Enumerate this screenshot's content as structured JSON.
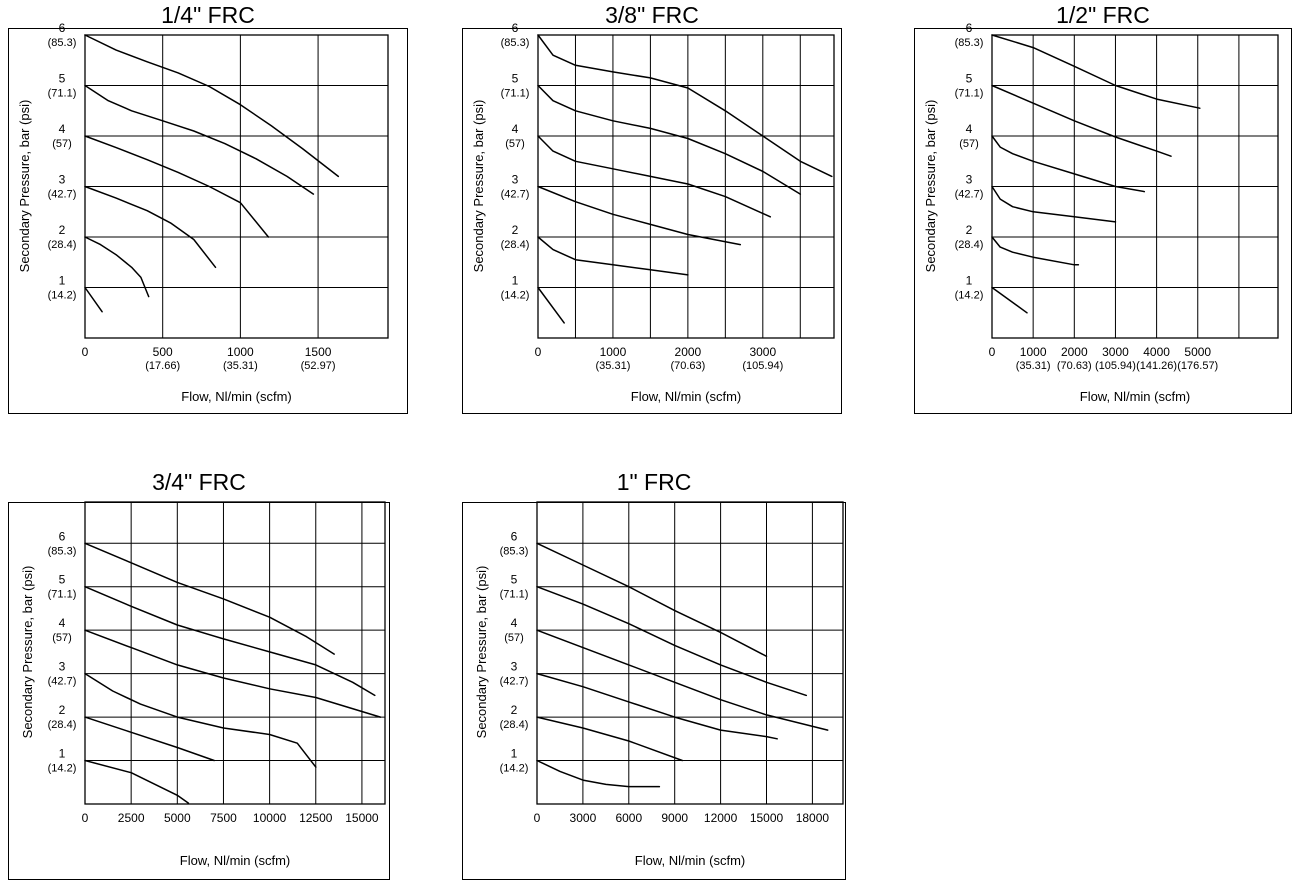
{
  "chart_data": [
    {
      "type": "line",
      "title": "1/4\" FRC",
      "xlabel": "Flow, Nl/min (scfm)",
      "ylabel": "Secondary Pressure, bar (psi)",
      "xlim": [
        0,
        1950
      ],
      "ylim": [
        0,
        6
      ],
      "grid": true,
      "x_grid_step": 500,
      "x_ticks": [
        {
          "value": 0,
          "label": "0"
        },
        {
          "value": 500,
          "label": "500",
          "sub": "(17.66)"
        },
        {
          "value": 1000,
          "label": "1000",
          "sub": "(35.31)"
        },
        {
          "value": 1500,
          "label": "1500",
          "sub": "(52.97)"
        }
      ],
      "y_ticks": [
        {
          "value": 1,
          "label": "1",
          "sub": "(14.2)"
        },
        {
          "value": 2,
          "label": "2",
          "sub": "(28.4)"
        },
        {
          "value": 3,
          "label": "3",
          "sub": "(42.7)"
        },
        {
          "value": 4,
          "label": "4",
          "sub": "(57)"
        },
        {
          "value": 5,
          "label": "5",
          "sub": "(71.1)"
        },
        {
          "value": 6,
          "label": "6",
          "sub": "(85.3)"
        }
      ],
      "series": [
        {
          "x": [
            0,
            200,
            400,
            600,
            800,
            1000,
            1200,
            1400,
            1630
          ],
          "y": [
            6,
            5.7,
            5.47,
            5.25,
            4.98,
            4.62,
            4.2,
            3.75,
            3.2
          ]
        },
        {
          "x": [
            0,
            150,
            300,
            500,
            700,
            900,
            1100,
            1300,
            1470
          ],
          "y": [
            5,
            4.7,
            4.5,
            4.3,
            4.1,
            3.85,
            3.55,
            3.2,
            2.85
          ]
        },
        {
          "x": [
            0,
            200,
            400,
            600,
            800,
            1000,
            1180
          ],
          "y": [
            4,
            3.77,
            3.53,
            3.28,
            3.0,
            2.68,
            2.0
          ]
        },
        {
          "x": [
            0,
            200,
            400,
            550,
            700,
            840
          ],
          "y": [
            3,
            2.77,
            2.52,
            2.28,
            1.95,
            1.4
          ]
        },
        {
          "x": [
            0,
            100,
            200,
            300,
            360,
            410
          ],
          "y": [
            2,
            1.85,
            1.65,
            1.4,
            1.2,
            0.82
          ]
        },
        {
          "x": [
            0,
            110
          ],
          "y": [
            1,
            0.52
          ]
        }
      ]
    },
    {
      "type": "line",
      "title": "3/8\" FRC",
      "xlabel": "Flow, Nl/min (scfm)",
      "ylabel": "Secondary Pressure, bar (psi)",
      "xlim": [
        0,
        3950
      ],
      "ylim": [
        0,
        6
      ],
      "grid": true,
      "x_grid_step": 500,
      "x_ticks": [
        {
          "value": 0,
          "label": "0"
        },
        {
          "value": 1000,
          "label": "1000",
          "sub": "(35.31)"
        },
        {
          "value": 2000,
          "label": "2000",
          "sub": "(70.63)"
        },
        {
          "value": 3000,
          "label": "3000",
          "sub": "(105.94)"
        }
      ],
      "y_ticks": [
        {
          "value": 1,
          "label": "1",
          "sub": "(14.2)"
        },
        {
          "value": 2,
          "label": "2",
          "sub": "(28.4)"
        },
        {
          "value": 3,
          "label": "3",
          "sub": "(42.7)"
        },
        {
          "value": 4,
          "label": "4",
          "sub": "(57)"
        },
        {
          "value": 5,
          "label": "5",
          "sub": "(71.1)"
        },
        {
          "value": 6,
          "label": "6",
          "sub": "(85.3)"
        }
      ],
      "series": [
        {
          "x": [
            0,
            200,
            500,
            1000,
            1500,
            2000,
            2500,
            3000,
            3500,
            3920
          ],
          "y": [
            6,
            5.6,
            5.4,
            5.27,
            5.15,
            4.95,
            4.5,
            4.0,
            3.5,
            3.2
          ]
        },
        {
          "x": [
            0,
            200,
            500,
            1000,
            1500,
            2000,
            2500,
            3000,
            3500
          ],
          "y": [
            5,
            4.7,
            4.5,
            4.3,
            4.15,
            3.95,
            3.65,
            3.3,
            2.85
          ]
        },
        {
          "x": [
            0,
            200,
            500,
            1000,
            1500,
            2000,
            2500,
            3100
          ],
          "y": [
            4,
            3.7,
            3.5,
            3.35,
            3.2,
            3.05,
            2.8,
            2.4
          ]
        },
        {
          "x": [
            0,
            500,
            1000,
            1500,
            2000,
            2700
          ],
          "y": [
            3,
            2.7,
            2.45,
            2.25,
            2.05,
            1.85
          ]
        },
        {
          "x": [
            0,
            200,
            500,
            1000,
            1500,
            2000
          ],
          "y": [
            2,
            1.75,
            1.55,
            1.45,
            1.35,
            1.25
          ]
        },
        {
          "x": [
            0,
            350
          ],
          "y": [
            1,
            0.3
          ]
        }
      ]
    },
    {
      "type": "line",
      "title": "1/2\" FRC",
      "xlabel": "Flow, Nl/min (scfm)",
      "ylabel": "Secondary Pressure, bar (psi)",
      "xlim": [
        0,
        6950
      ],
      "ylim": [
        0,
        6
      ],
      "grid": true,
      "x_grid_step": 1000,
      "x_ticks": [
        {
          "value": 0,
          "label": "0"
        },
        {
          "value": 1000,
          "label": "1000",
          "sub": "(35.31)"
        },
        {
          "value": 2000,
          "label": "2000",
          "sub": "(70.63)"
        },
        {
          "value": 3000,
          "label": "3000",
          "sub": "(105.94)"
        },
        {
          "value": 4000,
          "label": "4000",
          "sub": "(141.26)"
        },
        {
          "value": 5000,
          "label": "5000",
          "sub": "(176.57)"
        }
      ],
      "y_ticks": [
        {
          "value": 1,
          "label": "1",
          "sub": "(14.2)"
        },
        {
          "value": 2,
          "label": "2",
          "sub": "(28.4)"
        },
        {
          "value": 3,
          "label": "3",
          "sub": "(42.7)"
        },
        {
          "value": 4,
          "label": "4",
          "sub": "(57)"
        },
        {
          "value": 5,
          "label": "5",
          "sub": "(71.1)"
        },
        {
          "value": 6,
          "label": "6",
          "sub": "(85.3)"
        }
      ],
      "series": [
        {
          "x": [
            0,
            1000,
            2000,
            3000,
            4000,
            5050
          ],
          "y": [
            6,
            5.75,
            5.38,
            5.0,
            4.73,
            4.55
          ]
        },
        {
          "x": [
            0,
            1000,
            2000,
            3000,
            4000,
            4350
          ],
          "y": [
            5,
            4.65,
            4.3,
            3.98,
            3.7,
            3.6
          ]
        },
        {
          "x": [
            0,
            200,
            500,
            1000,
            2000,
            3000,
            3700
          ],
          "y": [
            4,
            3.78,
            3.65,
            3.5,
            3.25,
            3.0,
            2.9
          ]
        },
        {
          "x": [
            0,
            200,
            500,
            1000,
            2000,
            3000
          ],
          "y": [
            3,
            2.75,
            2.6,
            2.5,
            2.4,
            2.3
          ]
        },
        {
          "x": [
            0,
            200,
            500,
            1000,
            2000,
            2100
          ],
          "y": [
            2,
            1.8,
            1.7,
            1.6,
            1.45,
            1.45
          ]
        },
        {
          "x": [
            0,
            850
          ],
          "y": [
            1,
            0.5
          ]
        }
      ]
    },
    {
      "type": "line",
      "title": "3/4\" FRC",
      "xlabel": "Flow, Nl/min (scfm)",
      "ylabel": "Secondary Pressure, bar (psi)",
      "xlim": [
        0,
        16250
      ],
      "ylim": [
        0,
        6.95
      ],
      "grid": true,
      "x_grid_step": 2500,
      "x_ticks": [
        {
          "value": 0,
          "label": "0"
        },
        {
          "value": 2500,
          "label": "2500"
        },
        {
          "value": 5000,
          "label": "5000"
        },
        {
          "value": 7500,
          "label": "7500"
        },
        {
          "value": 10000,
          "label": "10000"
        },
        {
          "value": 12500,
          "label": "12500"
        },
        {
          "value": 15000,
          "label": "15000"
        }
      ],
      "y_ticks": [
        {
          "value": 1,
          "label": "1",
          "sub": "(14.2)"
        },
        {
          "value": 2,
          "label": "2",
          "sub": "(28.4)"
        },
        {
          "value": 3,
          "label": "3",
          "sub": "(42.7)"
        },
        {
          "value": 4,
          "label": "4",
          "sub": "(57)"
        },
        {
          "value": 5,
          "label": "5",
          "sub": "(71.1)"
        },
        {
          "value": 6,
          "label": "6",
          "sub": "(85.3)"
        }
      ],
      "series": [
        {
          "x": [
            0,
            2500,
            5000,
            7500,
            10000,
            12000,
            13500
          ],
          "y": [
            6,
            5.55,
            5.1,
            4.72,
            4.3,
            3.85,
            3.45
          ]
        },
        {
          "x": [
            0,
            2500,
            5000,
            7500,
            10000,
            12500,
            14500,
            15700
          ],
          "y": [
            5,
            4.55,
            4.12,
            3.8,
            3.5,
            3.2,
            2.8,
            2.5
          ]
        },
        {
          "x": [
            0,
            2500,
            5000,
            7500,
            10000,
            12500,
            16000
          ],
          "y": [
            4,
            3.6,
            3.2,
            2.9,
            2.65,
            2.45,
            2.0
          ]
        },
        {
          "x": [
            0,
            1500,
            3000,
            5000,
            7500,
            10000,
            11500,
            12500
          ],
          "y": [
            3,
            2.6,
            2.3,
            2.0,
            1.75,
            1.6,
            1.4,
            0.85
          ]
        },
        {
          "x": [
            0,
            2500,
            5000,
            7000
          ],
          "y": [
            2,
            1.65,
            1.3,
            1.0
          ]
        },
        {
          "x": [
            0,
            2500,
            5000,
            5600
          ],
          "y": [
            1,
            0.72,
            0.2,
            0.02
          ]
        }
      ]
    },
    {
      "type": "line",
      "title": "1\" FRC",
      "xlabel": "Flow, Nl/min (scfm)",
      "ylabel": "Secondary Pressure, bar (psi)",
      "xlim": [
        0,
        20000
      ],
      "ylim": [
        0,
        6.95
      ],
      "grid": true,
      "x_grid_step": 3000,
      "x_ticks": [
        {
          "value": 0,
          "label": "0"
        },
        {
          "value": 3000,
          "label": "3000"
        },
        {
          "value": 6000,
          "label": "6000"
        },
        {
          "value": 9000,
          "label": "9000"
        },
        {
          "value": 12000,
          "label": "12000"
        },
        {
          "value": 15000,
          "label": "15000"
        },
        {
          "value": 18000,
          "label": "18000"
        }
      ],
      "y_ticks": [
        {
          "value": 1,
          "label": "1",
          "sub": "(14.2)"
        },
        {
          "value": 2,
          "label": "2",
          "sub": "(28.4)"
        },
        {
          "value": 3,
          "label": "3",
          "sub": "(42.7)"
        },
        {
          "value": 4,
          "label": "4",
          "sub": "(57)"
        },
        {
          "value": 5,
          "label": "5",
          "sub": "(71.1)"
        },
        {
          "value": 6,
          "label": "6",
          "sub": "(85.3)"
        }
      ],
      "series": [
        {
          "x": [
            0,
            3000,
            6000,
            9000,
            12000,
            15000
          ],
          "y": [
            6,
            5.5,
            5.0,
            4.45,
            3.95,
            3.4
          ]
        },
        {
          "x": [
            0,
            3000,
            6000,
            9000,
            12000,
            15000,
            17600
          ],
          "y": [
            5,
            4.6,
            4.15,
            3.65,
            3.2,
            2.8,
            2.5
          ]
        },
        {
          "x": [
            0,
            3000,
            6000,
            9000,
            12000,
            15000,
            19000
          ],
          "y": [
            4,
            3.6,
            3.2,
            2.8,
            2.4,
            2.05,
            1.7
          ]
        },
        {
          "x": [
            0,
            3000,
            6000,
            9000,
            12000,
            15000,
            15700
          ],
          "y": [
            3,
            2.7,
            2.35,
            2.0,
            1.7,
            1.55,
            1.5
          ]
        },
        {
          "x": [
            0,
            3000,
            6000,
            9500
          ],
          "y": [
            2,
            1.75,
            1.45,
            1.0
          ]
        },
        {
          "x": [
            0,
            1500,
            3000,
            4500,
            6000,
            8000
          ],
          "y": [
            1,
            0.75,
            0.55,
            0.45,
            0.4,
            0.4
          ]
        }
      ]
    }
  ]
}
